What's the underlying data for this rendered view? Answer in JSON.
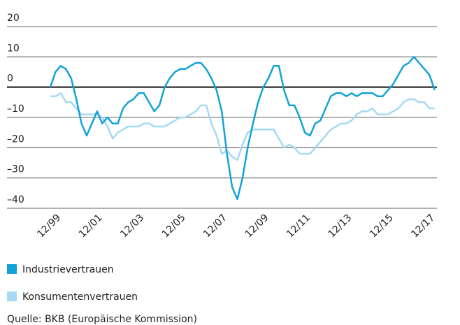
{
  "chart_data": {
    "type": "line",
    "categories": [
      null,
      "12/99",
      null,
      null,
      null,
      null,
      null,
      null,
      null,
      "12/01",
      null,
      null,
      null,
      null,
      null,
      null,
      null,
      "12/03",
      null,
      null,
      null,
      null,
      null,
      null,
      null,
      "12/05",
      null,
      null,
      null,
      null,
      null,
      null,
      null,
      "12/07",
      null,
      null,
      null,
      null,
      null,
      null,
      null,
      "12/09",
      null,
      null,
      null,
      null,
      null,
      null,
      null,
      "12/11",
      null,
      null,
      null,
      null,
      null,
      null,
      null,
      "12/13",
      null,
      null,
      null,
      null,
      null,
      null,
      null,
      "12/15",
      null,
      null,
      null,
      null,
      null,
      null,
      null,
      "12/17",
      null
    ],
    "series": [
      {
        "name": "Industrievertrauen",
        "color": "#12a3d8",
        "values": [
          0,
          5,
          7,
          6,
          3,
          -4,
          -12,
          -16,
          -12,
          -8,
          -12,
          -10,
          -12,
          -12,
          -7,
          -5,
          -4,
          -2,
          -2,
          -5,
          -8,
          -6,
          0,
          3,
          5,
          6,
          6,
          7,
          8,
          8,
          6,
          3,
          -1,
          -8,
          -22,
          -33,
          -37,
          -30,
          -20,
          -12,
          -5,
          0,
          3,
          7,
          7,
          -1,
          -6,
          -6,
          -10,
          -15,
          -16,
          -12,
          -11,
          -7,
          -3,
          -2,
          -2,
          -3,
          -2,
          -3,
          -2,
          -2,
          -2,
          -3,
          -3,
          -1,
          1,
          4,
          7,
          8,
          10,
          8,
          6,
          4,
          -1
        ]
      },
      {
        "name": "Konsumentenvertrauen",
        "color": "#a6d9f2",
        "values": [
          -3,
          -3,
          -2,
          -5,
          -5,
          -7,
          -9,
          -9,
          -9,
          -9,
          -10,
          -13,
          -17,
          -15,
          -14,
          -13,
          -13,
          -13,
          -12,
          -12,
          -13,
          -13,
          -13,
          -12,
          -11,
          -10,
          -10,
          -9,
          -8,
          -6,
          -6,
          -12,
          -16,
          -22,
          -21,
          -23,
          -24,
          -19,
          -15,
          -14,
          -14,
          -14,
          -14,
          -14,
          -17,
          -20,
          -19,
          -20,
          -22,
          -22,
          -22,
          -20,
          -18,
          -16,
          -14,
          -13,
          -12,
          -12,
          -11,
          -9,
          -8,
          -8,
          -7,
          -9,
          -9,
          -9,
          -8,
          -7,
          -5,
          -4,
          -4,
          -5,
          -5,
          -7,
          -7
        ]
      }
    ],
    "ylim": [
      -40,
      20
    ],
    "yticks": [
      {
        "value": -40,
        "label": "–40"
      },
      {
        "value": -30,
        "label": "–30"
      },
      {
        "value": -20,
        "label": "–20"
      },
      {
        "value": -10,
        "label": "–10"
      },
      0,
      10,
      20
    ],
    "grid": true,
    "source": "Quelle: BKB (Europäische Kommission)"
  }
}
